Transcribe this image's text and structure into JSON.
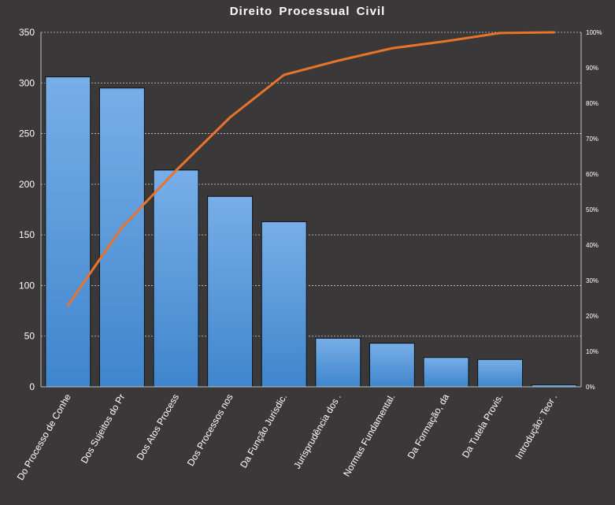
{
  "chart_data": {
    "type": "bar",
    "title": "Direito  Processual  Civil",
    "categories": [
      "Do Processo de Conhe",
      "Dos Sujeitos do Pr",
      "Dos Atos Process",
      "Dos Processos nos",
      "Da Função Jurisdic.",
      "Jurisprudência dos .",
      "Normas Fundamental.",
      "Da Formação, da",
      "Da Tutela Provis.",
      "Introdução: Teor ."
    ],
    "values": [
      306,
      295,
      214,
      188,
      163,
      48,
      43,
      29,
      27,
      2
    ],
    "cumulative_percent": [
      23,
      45,
      61,
      76,
      88,
      92,
      95.5,
      97.5,
      99.8,
      100
    ],
    "ylim": [
      0,
      350
    ],
    "yticks": [
      "0",
      "50",
      "100",
      "150",
      "200",
      "250",
      "300",
      "350"
    ],
    "y2lim": [
      0,
      100
    ],
    "y2ticks": [
      "0%",
      "10%",
      "20%",
      "30%",
      "40%",
      "50%",
      "60%",
      "70%",
      "80%",
      "90%",
      "100%"
    ],
    "grid": true,
    "colors": {
      "background": "#3a3838",
      "bar_top": "#78aee8",
      "bar_bottom": "#3f86cc",
      "bar_border": "#111111",
      "line": "#e8732b",
      "grid": "#d0d0d0",
      "text": "#ffffff"
    }
  }
}
